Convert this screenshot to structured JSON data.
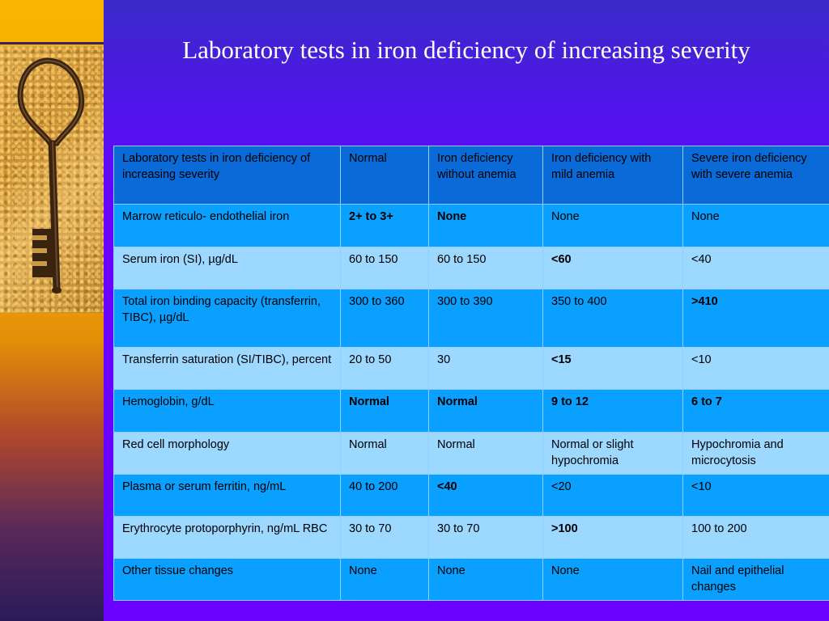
{
  "slide": {
    "title": "Laboratory tests in iron deficiency of increasing severity"
  },
  "table": {
    "header": [
      "Laboratory tests in iron deficiency of increasing severity",
      "Normal",
      "Iron deficiency without anemia",
      "Iron deficiency with mild anemia",
      "Severe iron deficiency with severe anemia"
    ],
    "rows": [
      {
        "cells": [
          "Marrow reticulo- endothelial iron",
          "2+ to 3+",
          "None",
          "None",
          "None"
        ],
        "bold": [
          false,
          true,
          true,
          false,
          false
        ]
      },
      {
        "cells": [
          "Serum iron (SI), µg/dL",
          "60 to 150",
          "60 to 150",
          "<60",
          "<40"
        ],
        "bold": [
          false,
          false,
          false,
          true,
          false
        ]
      },
      {
        "cells": [
          "Total iron binding capacity (transferrin, TIBC), µg/dL",
          "300 to 360",
          "300 to 390",
          "350 to 400",
          ">410"
        ],
        "bold": [
          false,
          false,
          false,
          false,
          true
        ]
      },
      {
        "cells": [
          "Transferrin saturation (SI/TIBC), percent",
          "20 to 50",
          "30",
          "<15",
          "<10"
        ],
        "bold": [
          false,
          false,
          false,
          true,
          false
        ]
      },
      {
        "cells": [
          "Hemoglobin, g/dL",
          "Normal",
          "Normal",
          "9 to 12",
          "6 to 7"
        ],
        "bold": [
          false,
          true,
          true,
          true,
          true
        ]
      },
      {
        "cells": [
          "Red cell morphology",
          "Normal",
          "Normal",
          "Normal or slight hypochromia",
          "Hypochromia and microcytosis"
        ],
        "bold": [
          false,
          false,
          false,
          false,
          false
        ]
      },
      {
        "cells": [
          "Plasma or serum ferritin, ng/mL",
          "40 to 200",
          "<40",
          "<20",
          "<10"
        ],
        "bold": [
          false,
          false,
          true,
          false,
          false
        ]
      },
      {
        "cells": [
          "Erythrocyte protoporphyrin, ng/mL RBC",
          "30 to 70",
          "30 to 70",
          ">100",
          "100 to 200"
        ],
        "bold": [
          false,
          false,
          false,
          true,
          false
        ]
      },
      {
        "cells": [
          "Other tissue changes",
          "None",
          "None",
          "None",
          "Nail and epithelial changes"
        ],
        "bold": [
          false,
          false,
          false,
          false,
          false
        ]
      }
    ]
  }
}
